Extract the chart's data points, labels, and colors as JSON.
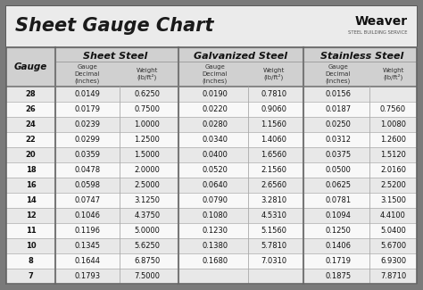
{
  "title": "Sheet Gauge Chart",
  "bg_outer": "#7a7a7a",
  "bg_inner": "#ffffff",
  "title_bg": "#f0f0f0",
  "table_header_bg": "#c8c8c8",
  "row_bg_light": "#f2f2f2",
  "row_bg_dark": "#e2e2e2",
  "border_color": "#888888",
  "text_dark": "#111111",
  "gauges": [
    "28",
    "26",
    "24",
    "22",
    "20",
    "18",
    "16",
    "14",
    "12",
    "11",
    "10",
    "8",
    "7"
  ],
  "sheet_steel_dec": [
    "0.0149",
    "0.0179",
    "0.0239",
    "0.0299",
    "0.0359",
    "0.0478",
    "0.0598",
    "0.0747",
    "0.1046",
    "0.1196",
    "0.1345",
    "0.1644",
    "0.1793"
  ],
  "sheet_steel_wt": [
    "0.6250",
    "0.7500",
    "1.0000",
    "1.2500",
    "1.5000",
    "2.0000",
    "2.5000",
    "3.1250",
    "4.3750",
    "5.0000",
    "5.6250",
    "6.8750",
    "7.5000"
  ],
  "galv_dec": [
    "0.0190",
    "0.0220",
    "0.0280",
    "0.0340",
    "0.0400",
    "0.0520",
    "0.0640",
    "0.0790",
    "0.1080",
    "0.1230",
    "0.1380",
    "0.1680",
    ""
  ],
  "galv_wt": [
    "0.7810",
    "0.9060",
    "1.1560",
    "1.4060",
    "1.6560",
    "2.1560",
    "2.6560",
    "3.2810",
    "4.5310",
    "5.1560",
    "5.7810",
    "7.0310",
    ""
  ],
  "stain_dec": [
    "0.0156",
    "0.0187",
    "0.0250",
    "0.0312",
    "0.0375",
    "0.0500",
    "0.0625",
    "0.0781",
    "0.1094",
    "0.1250",
    "0.1406",
    "0.1719",
    "0.1875"
  ],
  "stain_wt": [
    "",
    "0.7560",
    "1.0080",
    "1.2600",
    "1.5120",
    "2.0160",
    "2.5200",
    "3.1500",
    "4.4100",
    "5.0400",
    "5.6700",
    "6.9300",
    "7.8710"
  ]
}
